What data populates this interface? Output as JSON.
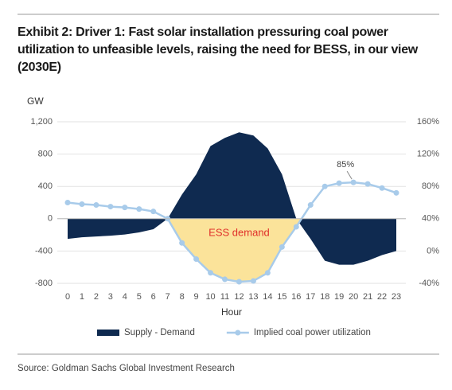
{
  "chart_data": {
    "type": "area-line",
    "title": "Exhibit 2: Driver 1: Fast solar installation pressuring coal power utilization to unfeasible levels, raising the need for BESS, in our view (2030E)",
    "ylabel": "GW",
    "xlabel": "Hour",
    "source": "Source: Goldman Sachs Global Investment Research",
    "x": [
      0,
      1,
      2,
      3,
      4,
      5,
      6,
      7,
      8,
      9,
      10,
      11,
      12,
      13,
      14,
      15,
      16,
      17,
      18,
      19,
      20,
      21,
      22,
      23
    ],
    "series": [
      {
        "name": "Supply - Demand",
        "color": "#0f2a50",
        "kind": "area",
        "values": [
          -250,
          -230,
          -220,
          -210,
          -195,
          -170,
          -130,
          0,
          300,
          550,
          900,
          1000,
          1070,
          1030,
          870,
          550,
          0,
          -250,
          -520,
          -570,
          -570,
          -520,
          -450,
          -400
        ]
      },
      {
        "name": "Implied coal power utilization",
        "color": "#a8cbea",
        "kind": "line",
        "axis": "y2",
        "values": [
          60,
          58,
          57,
          55,
          54,
          52,
          49,
          40,
          10,
          -10,
          -27,
          -35,
          -38,
          -37,
          -27,
          5,
          30,
          57,
          80,
          84,
          85,
          83,
          78,
          72
        ]
      }
    ],
    "xlim": [
      0,
      23
    ],
    "ylim": [
      -800,
      1200
    ],
    "yticks": [
      -800,
      -400,
      0,
      400,
      800,
      {
        "value": 1200,
        "label": "1,200"
      }
    ],
    "y2lim": [
      -40,
      160
    ],
    "y2ticks": [
      {
        "value": -40,
        "label": "-40%"
      },
      {
        "value": 0,
        "label": "0%"
      },
      {
        "value": 40,
        "label": "40%"
      },
      {
        "value": 80,
        "label": "80%"
      },
      {
        "value": 120,
        "label": "120%"
      },
      {
        "value": 160,
        "label": "160%"
      }
    ],
    "grid": true,
    "annotations": [
      {
        "text": "ESS demand",
        "color": "#e0302a",
        "fill": "#fbe39a",
        "x": 12,
        "y": -180
      },
      {
        "text": "85%",
        "x": 20,
        "y": 85
      }
    ]
  }
}
